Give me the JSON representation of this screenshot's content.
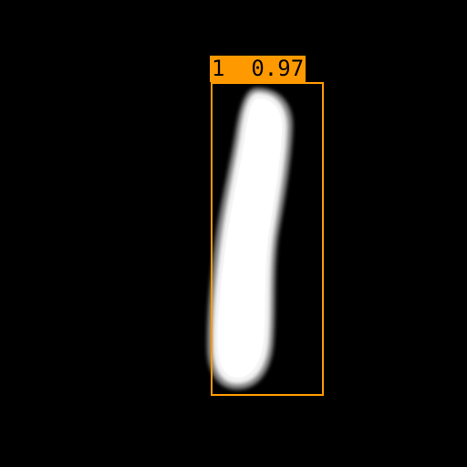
{
  "detection": {
    "class_label": "1",
    "score": "0.97",
    "label_text": "1  0.97"
  },
  "colors": {
    "background": "#000000",
    "box": "#ff9900",
    "label_text": "#000000",
    "digit": "#ffffff"
  }
}
